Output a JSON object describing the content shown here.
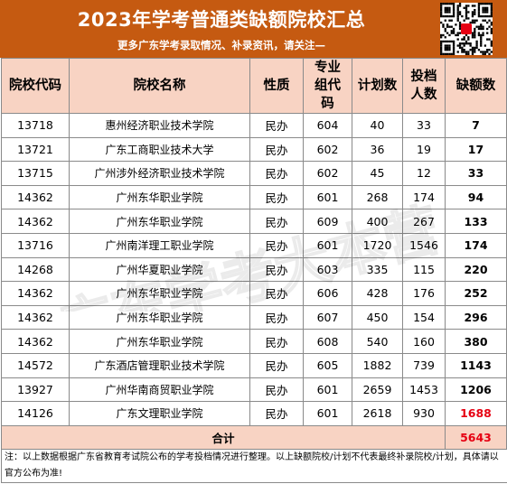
{
  "title": "2023年学考普通类缺额院校汇总",
  "subtitle": "更多广东学考录取情况、补录资讯，请关注—",
  "columns": [
    "院校代码",
    "院校名称",
    "性质",
    "专业组代码",
    "计划数",
    "投档人数",
    "缺额数"
  ],
  "rows": [
    {
      "code": "13718",
      "name": "惠州经济职业技术学院",
      "nature": "民办",
      "group": "604",
      "plan": "40",
      "admit": "33",
      "gap": "7"
    },
    {
      "code": "13721",
      "name": "广东工商职业技术大学",
      "nature": "民办",
      "group": "602",
      "plan": "36",
      "admit": "19",
      "gap": "17"
    },
    {
      "code": "13715",
      "name": "广州涉外经济职业技术学院",
      "nature": "民办",
      "group": "602",
      "plan": "45",
      "admit": "12",
      "gap": "33"
    },
    {
      "code": "14362",
      "name": "广州东华职业学院",
      "nature": "民办",
      "group": "601",
      "plan": "268",
      "admit": "174",
      "gap": "94"
    },
    {
      "code": "14362",
      "name": "广州东华职业学院",
      "nature": "民办",
      "group": "609",
      "plan": "400",
      "admit": "267",
      "gap": "133"
    },
    {
      "code": "13716",
      "name": "广州南洋理工职业学院",
      "nature": "民办",
      "group": "601",
      "plan": "1720",
      "admit": "1546",
      "gap": "174"
    },
    {
      "code": "14268",
      "name": "广州华夏职业学院",
      "nature": "民办",
      "group": "603",
      "plan": "335",
      "admit": "115",
      "gap": "220"
    },
    {
      "code": "14362",
      "name": "广州东华职业学院",
      "nature": "民办",
      "group": "606",
      "plan": "428",
      "admit": "176",
      "gap": "252"
    },
    {
      "code": "14362",
      "name": "广州东华职业学院",
      "nature": "民办",
      "group": "607",
      "plan": "450",
      "admit": "154",
      "gap": "296"
    },
    {
      "code": "14362",
      "name": "广州东华职业学院",
      "nature": "民办",
      "group": "608",
      "plan": "540",
      "admit": "160",
      "gap": "380"
    },
    {
      "code": "14572",
      "name": "广东酒店管理职业技术学院",
      "nature": "民办",
      "group": "605",
      "plan": "1882",
      "admit": "739",
      "gap": "1143"
    },
    {
      "code": "13927",
      "name": "广州华南商贸职业学院",
      "nature": "民办",
      "group": "601",
      "plan": "2659",
      "admit": "1453",
      "gap": "1206"
    },
    {
      "code": "14126",
      "name": "广东文理职业学院",
      "nature": "民办",
      "group": "601",
      "plan": "2618",
      "admit": "930",
      "gap": "1688"
    }
  ],
  "highlight_gap_color": "#e60012",
  "total": {
    "label": "合计",
    "value": "5643"
  },
  "note": "注：以上数据根据广东省教育考试院公布的学考投档情况进行整理。以上缺额院校/计划不代表最终补录院校/计划，具体请以官方公布为准!",
  "watermark": "广东学考大本营",
  "colors": {
    "header_bg": "#c55a11",
    "table_header_bg": "#f8d3c3",
    "accent_red": "#e60012"
  }
}
